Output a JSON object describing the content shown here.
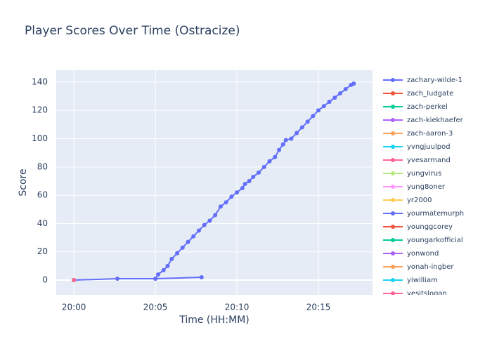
{
  "chart_data": {
    "type": "line",
    "title": "Player Scores Over Time (Ostracize)",
    "x_label": "Time (HH:MM)",
    "y_label": "Score",
    "xlim": [
      "19:58:55",
      "20:18:19"
    ],
    "xticks": [
      "20:00",
      "20:05",
      "20:10",
      "20:15"
    ],
    "ylim": [
      -10.4,
      148.4
    ],
    "yticks": [
      0,
      20,
      40,
      60,
      80,
      100,
      120,
      140
    ],
    "grid": true,
    "legend": "right",
    "series": [
      {
        "name": "zachary-wilde-1",
        "color": "#636efa",
        "x": [
          "20:05:00",
          "20:05:10",
          "20:05:30",
          "20:05:45",
          "20:06:00",
          "20:06:20",
          "20:06:40",
          "20:07:00",
          "20:07:20",
          "20:07:40",
          "20:08:00",
          "20:08:20",
          "20:08:40",
          "20:09:00",
          "20:09:20",
          "20:09:40",
          "20:10:00",
          "20:10:20",
          "20:10:30",
          "20:10:45",
          "20:11:00",
          "20:11:20",
          "20:11:40",
          "20:12:00",
          "20:12:20",
          "20:12:35",
          "20:12:50",
          "20:13:00",
          "20:13:20",
          "20:13:40",
          "20:14:00",
          "20:14:20",
          "20:14:40",
          "20:15:00",
          "20:15:20",
          "20:15:40",
          "20:16:00",
          "20:16:20",
          "20:16:40",
          "20:17:00",
          "20:17:10"
        ],
        "values": [
          1,
          4,
          7,
          10,
          15,
          19,
          23,
          27,
          31,
          35,
          39,
          42,
          46,
          52,
          55,
          59,
          62,
          65,
          68,
          70,
          73,
          76,
          80,
          84,
          87,
          92,
          96,
          99,
          100,
          104,
          108,
          112,
          116,
          120,
          123,
          126,
          129,
          132,
          135,
          138,
          139
        ]
      },
      {
        "name": "zach_ludgate",
        "color": "#EF553B",
        "x": [
          "20:00:00"
        ],
        "values": [
          0
        ]
      },
      {
        "name": "zach-perkel",
        "color": "#00cc96",
        "x": [
          "20:00:00"
        ],
        "values": [
          0
        ]
      },
      {
        "name": "zach-kiekhaefer",
        "color": "#ab63fa",
        "x": [
          "20:00:00"
        ],
        "values": [
          0
        ]
      },
      {
        "name": "zach-aaron-3",
        "color": "#FFA15A",
        "x": [
          "20:00:00"
        ],
        "values": [
          0
        ]
      },
      {
        "name": "yvngjuulpod",
        "color": "#19d3f3",
        "x": [
          "20:00:00"
        ],
        "values": [
          0
        ]
      },
      {
        "name": "yvesarmand",
        "color": "#FF6692",
        "x": [
          "20:00:00"
        ],
        "values": [
          0
        ]
      },
      {
        "name": "yungvirus",
        "color": "#B6E880",
        "x": [
          "20:00:00"
        ],
        "values": [
          0
        ]
      },
      {
        "name": "yung8oner",
        "color": "#FF97FF",
        "x": [
          "20:00:00"
        ],
        "values": [
          0
        ]
      },
      {
        "name": "yr2000",
        "color": "#FECB52",
        "x": [
          "20:00:00"
        ],
        "values": [
          0
        ]
      },
      {
        "name": "yourmatemurph",
        "color": "#636efa",
        "x": [
          "20:00:00",
          "20:02:40",
          "20:05:00",
          "20:07:50"
        ],
        "values": [
          0,
          1,
          1,
          2
        ]
      },
      {
        "name": "younggcorey",
        "color": "#EF553B",
        "x": [
          "20:00:00"
        ],
        "values": [
          0
        ]
      },
      {
        "name": "youngarkofficial",
        "color": "#00cc96",
        "x": [
          "20:00:00"
        ],
        "values": [
          0
        ]
      },
      {
        "name": "yonwond",
        "color": "#ab63fa",
        "x": [
          "20:00:00"
        ],
        "values": [
          0
        ]
      },
      {
        "name": "yonah-ingber",
        "color": "#FFA15A",
        "x": [
          "20:00:00"
        ],
        "values": [
          0
        ]
      },
      {
        "name": "yiwilliam",
        "color": "#19d3f3",
        "x": [
          "20:00:00"
        ],
        "values": [
          0
        ]
      },
      {
        "name": "yesitslogan",
        "color": "#FF6692",
        "x": [
          "20:00:00"
        ],
        "values": [
          0
        ]
      }
    ]
  }
}
